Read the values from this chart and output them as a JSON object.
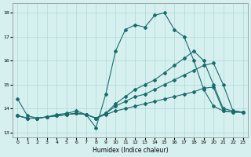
{
  "background_color": "#d6f0f0",
  "grid_color": "#b0d8d8",
  "line_color": "#1a6b6b",
  "xlabel": "Humidex (Indice chaleur)",
  "xlim": [
    -0.5,
    23.5
  ],
  "ylim": [
    12.8,
    18.4
  ],
  "yticks": [
    13,
    14,
    15,
    16,
    17,
    18
  ],
  "xticks": [
    0,
    1,
    2,
    3,
    4,
    5,
    6,
    7,
    8,
    9,
    10,
    11,
    12,
    13,
    14,
    15,
    16,
    17,
    18,
    19,
    20,
    21,
    22,
    23
  ],
  "line1_x": [
    0,
    1,
    2,
    3,
    4,
    5,
    6,
    7,
    8,
    9,
    10,
    11,
    12,
    13,
    14,
    15,
    16,
    17,
    18,
    19,
    20,
    21,
    22,
    23
  ],
  "line1_y": [
    14.4,
    13.7,
    13.6,
    13.65,
    13.75,
    13.8,
    13.9,
    13.75,
    13.2,
    14.6,
    16.4,
    17.3,
    17.5,
    17.4,
    17.9,
    18.0,
    17.3,
    17.0,
    16.0,
    14.8,
    14.1,
    13.9,
    13.85,
    13.85
  ],
  "line2_x": [
    0,
    1,
    2,
    3,
    4,
    5,
    6,
    7,
    8,
    9,
    10,
    11,
    12,
    13,
    14,
    15,
    16,
    17,
    18,
    19,
    20,
    21,
    22,
    23
  ],
  "line2_y": [
    13.7,
    13.6,
    13.6,
    13.65,
    13.7,
    13.75,
    13.8,
    13.75,
    13.6,
    13.75,
    13.9,
    14.0,
    14.1,
    14.2,
    14.3,
    14.4,
    14.5,
    14.6,
    14.7,
    14.85,
    14.9,
    13.9,
    13.85,
    13.85
  ],
  "line3_x": [
    0,
    1,
    2,
    3,
    4,
    5,
    6,
    7,
    8,
    9,
    10,
    11,
    12,
    13,
    14,
    15,
    16,
    17,
    18,
    19,
    20,
    21,
    22,
    23
  ],
  "line3_y": [
    13.7,
    13.6,
    13.6,
    13.65,
    13.7,
    13.75,
    13.8,
    13.75,
    13.6,
    13.8,
    14.1,
    14.3,
    14.5,
    14.6,
    14.8,
    15.0,
    15.2,
    15.4,
    15.6,
    15.8,
    15.9,
    15.0,
    13.9,
    13.85
  ],
  "line4_x": [
    0,
    1,
    2,
    3,
    4,
    5,
    6,
    7,
    8,
    9,
    10,
    11,
    12,
    13,
    14,
    15,
    16,
    17,
    18,
    19,
    20,
    21,
    22,
    23
  ],
  "line4_y": [
    13.7,
    13.6,
    13.6,
    13.65,
    13.7,
    13.75,
    13.8,
    13.75,
    13.6,
    13.8,
    14.2,
    14.5,
    14.8,
    15.0,
    15.2,
    15.5,
    15.8,
    16.1,
    16.4,
    16.0,
    15.0,
    14.0,
    13.9,
    13.85
  ]
}
